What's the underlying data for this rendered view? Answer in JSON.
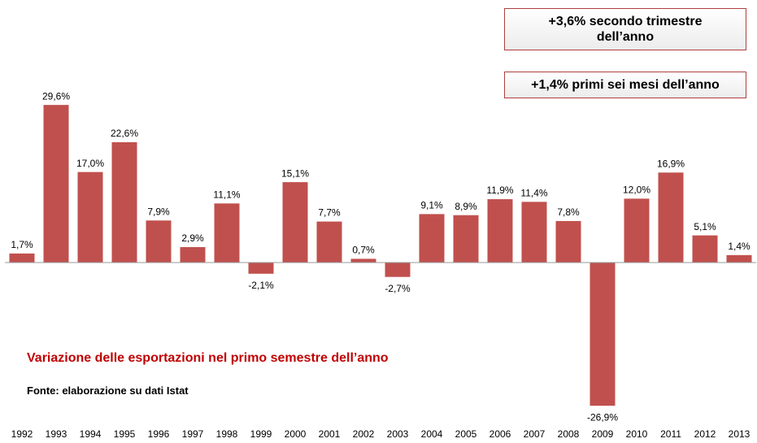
{
  "chart_data": {
    "type": "bar",
    "title": "Variazione delle esportazioni nel primo semestre dell’anno",
    "source": "Fonte: elaborazione su dati Istat",
    "annotations": [
      "+3,6% secondo trimestre dell’anno",
      "+1,4% primi sei mesi dell’anno"
    ],
    "categories": [
      "1992",
      "1993",
      "1994",
      "1995",
      "1996",
      "1997",
      "1998",
      "1999",
      "2000",
      "2001",
      "2002",
      "2003",
      "2004",
      "2005",
      "2006",
      "2007",
      "2008",
      "2009",
      "2010",
      "2011",
      "2012",
      "2013"
    ],
    "values": [
      1.7,
      29.6,
      17.0,
      22.6,
      7.9,
      2.9,
      11.1,
      -2.1,
      15.1,
      7.7,
      0.7,
      -2.7,
      9.1,
      8.9,
      11.9,
      11.4,
      7.8,
      -26.9,
      12.0,
      16.9,
      5.1,
      1.4
    ],
    "value_labels": [
      "1,7%",
      "29,6%",
      "17,0%",
      "22,6%",
      "7,9%",
      "2,9%",
      "11,1%",
      "-2,1%",
      "15,1%",
      "7,7%",
      "0,7%",
      "-2,7%",
      "9,1%",
      "8,9%",
      "11,9%",
      "11,4%",
      "7,8%",
      "-26,9%",
      "12,0%",
      "16,9%",
      "5,1%",
      "1,4%"
    ],
    "color": "#c0504d"
  }
}
